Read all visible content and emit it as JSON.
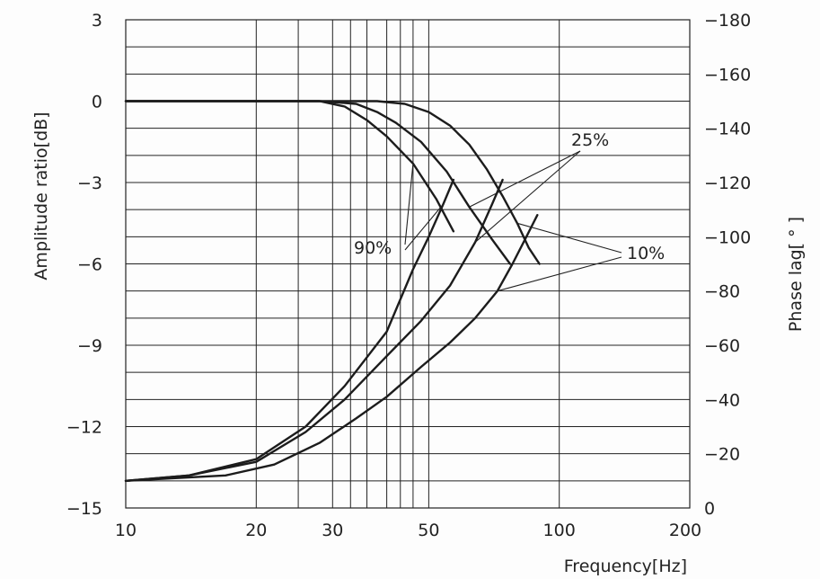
{
  "chart_data": {
    "type": "line",
    "xlabel": "Frequency[Hz]",
    "ylabel_left": "Amplitude ratio[dB]",
    "ylabel_right": "Phase lag[ ° ]",
    "x_ticks": [
      "10",
      "20",
      "30",
      "50",
      "100",
      "200"
    ],
    "y_left_ticks": [
      "3",
      "0",
      "−3",
      "−6",
      "−9",
      "−12",
      "−15"
    ],
    "y_right_ticks": [
      "−180",
      "−160",
      "−140",
      "−120",
      "−100",
      "−80",
      "−60",
      "−40",
      "−20",
      "0"
    ],
    "y_left_range": [
      -15,
      3
    ],
    "y_right_range": [
      0,
      -180
    ],
    "grid": true,
    "callouts": [
      "90%",
      "25%",
      "10%"
    ],
    "series": [
      {
        "name": "90%",
        "axis": "left",
        "x": [
          10,
          28,
          32,
          36,
          40,
          46,
          52,
          57
        ],
        "y": [
          0,
          0,
          -0.2,
          -0.7,
          -1.3,
          -2.3,
          -3.6,
          -4.8
        ]
      },
      {
        "name": "25%",
        "axis": "left",
        "x": [
          10,
          28,
          34,
          38,
          42,
          48,
          55,
          62,
          70,
          77
        ],
        "y": [
          0,
          0,
          -0.1,
          -0.4,
          -0.8,
          -1.5,
          -2.6,
          -3.9,
          -5.1,
          -6.0
        ]
      },
      {
        "name": "10%",
        "axis": "left",
        "x": [
          10,
          38,
          44,
          50,
          56,
          62,
          68,
          74,
          80,
          85,
          90
        ],
        "y": [
          0,
          0,
          -0.1,
          -0.4,
          -0.9,
          -1.6,
          -2.5,
          -3.5,
          -4.5,
          -5.4,
          -6.0
        ]
      },
      {
        "name": "90%",
        "axis": "right",
        "x": [
          10,
          14,
          20,
          26,
          32,
          40,
          46,
          50,
          54,
          57
        ],
        "y": [
          -10,
          -12,
          -18,
          -30,
          -45,
          -65,
          -88,
          -100,
          -112,
          -121
        ]
      },
      {
        "name": "25%",
        "axis": "right",
        "x": [
          10,
          14,
          20,
          26,
          32,
          40,
          48,
          56,
          64,
          70,
          74
        ],
        "y": [
          -10,
          -12,
          -17,
          -28,
          -40,
          -56,
          -69,
          -82,
          -98,
          -112,
          -121
        ]
      },
      {
        "name": "10%",
        "axis": "right",
        "x": [
          10,
          13,
          17,
          22,
          28,
          34,
          40,
          48,
          56,
          64,
          72,
          78,
          84,
          89
        ],
        "y": [
          -10,
          -11,
          -12,
          -16,
          -24,
          -33,
          -41,
          -52,
          -61,
          -70,
          -80,
          -90,
          -100,
          -108
        ]
      }
    ]
  }
}
